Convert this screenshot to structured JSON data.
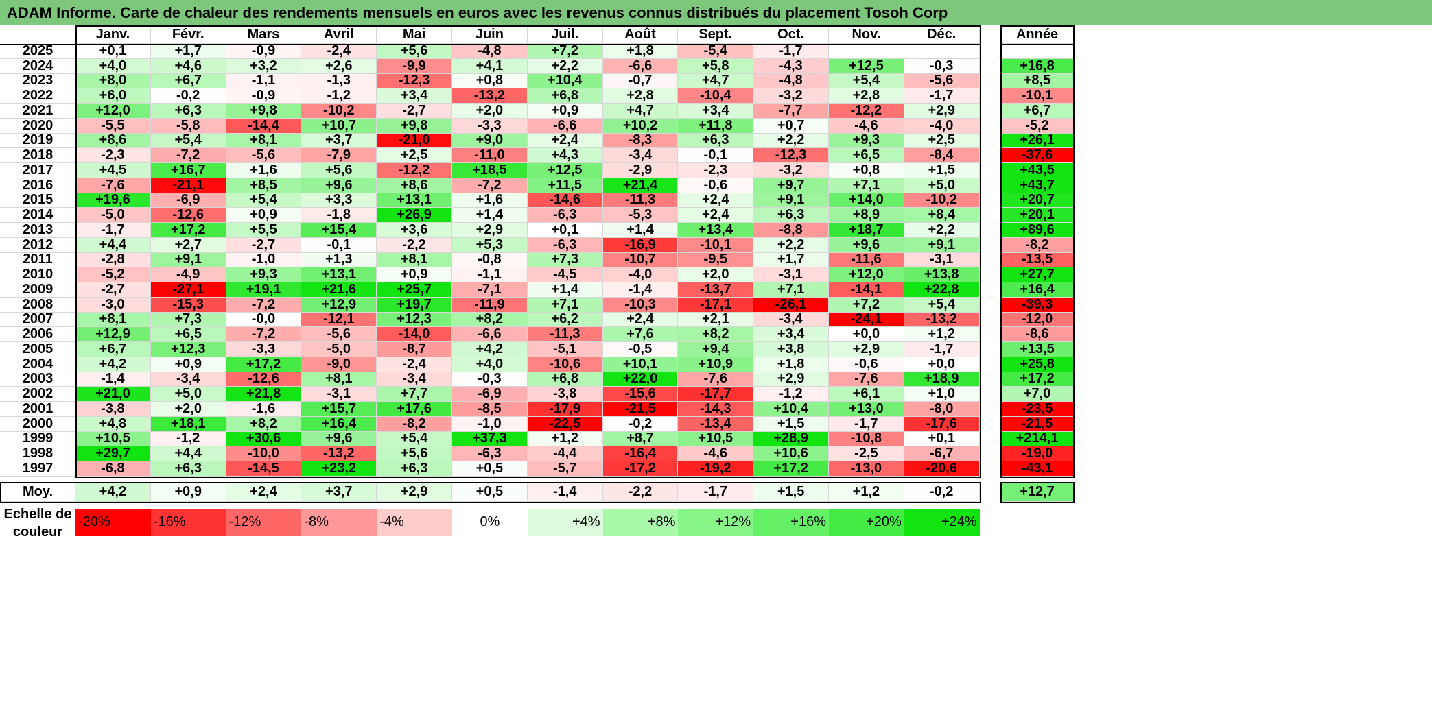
{
  "title": "ADAM Informe. Carte de chaleur des rendements mensuels en euros avec les revenus connus distribués du placement Tosoh Corp",
  "chart_data": {
    "type": "heatmap",
    "title": "ADAM Informe. Carte de chaleur des rendements mensuels en euros avec les revenus connus distribués du placement Tosoh Corp",
    "months": [
      "Janv.",
      "Févr.",
      "Mars",
      "Avril",
      "Mai",
      "Juin",
      "Juil.",
      "Août",
      "Sept.",
      "Oct.",
      "Nov.",
      "Déc."
    ],
    "year_header": "Année",
    "rows": [
      {
        "year": "2025",
        "values": [
          "+0,1",
          "+1,7",
          "-0,9",
          "-2,4",
          "+5,6",
          "-4,8",
          "+7,2",
          "+1,8",
          "-5,4",
          "-1,7",
          "",
          ""
        ],
        "annual": ""
      },
      {
        "year": "2024",
        "values": [
          "+4,0",
          "+4,6",
          "+3,2",
          "+2,6",
          "-9,9",
          "+4,1",
          "+2,2",
          "-6,6",
          "+5,8",
          "-4,3",
          "+12,5",
          "-0,3"
        ],
        "annual": "+16,8"
      },
      {
        "year": "2023",
        "values": [
          "+8,0",
          "+6,7",
          "-1,1",
          "-1,3",
          "-12,3",
          "+0,8",
          "+10,4",
          "-0,7",
          "+4,7",
          "-4,8",
          "+5,4",
          "-5,6"
        ],
        "annual": "+8,5"
      },
      {
        "year": "2022",
        "values": [
          "+6,0",
          "-0,2",
          "-0,9",
          "-1,2",
          "+3,4",
          "-13,2",
          "+6,8",
          "+2,8",
          "-10,4",
          "-3,2",
          "+2,8",
          "-1,7"
        ],
        "annual": "-10,1"
      },
      {
        "year": "2021",
        "values": [
          "+12,0",
          "+6,3",
          "+9,8",
          "-10,2",
          "-2,7",
          "+2,0",
          "+0,9",
          "+4,7",
          "+3,4",
          "-7,7",
          "-12,2",
          "+2,9"
        ],
        "annual": "+6,7"
      },
      {
        "year": "2020",
        "values": [
          "-5,5",
          "-5,8",
          "-14,4",
          "+10,7",
          "+9,8",
          "-3,3",
          "-6,6",
          "+10,2",
          "+11,8",
          "+0,7",
          "-4,6",
          "-4,0"
        ],
        "annual": "-5,2"
      },
      {
        "year": "2019",
        "values": [
          "+8,6",
          "+5,4",
          "+8,1",
          "+3,7",
          "-21,0",
          "+9,0",
          "+2,4",
          "-8,3",
          "+6,3",
          "+2,2",
          "+9,3",
          "+2,5"
        ],
        "annual": "+26,1"
      },
      {
        "year": "2018",
        "values": [
          "-2,3",
          "-7,2",
          "-5,6",
          "-7,9",
          "+2,5",
          "-11,0",
          "+4,3",
          "-3,4",
          "-0,1",
          "-12,3",
          "+6,5",
          "-8,4"
        ],
        "annual": "-37,6"
      },
      {
        "year": "2017",
        "values": [
          "+4,5",
          "+16,7",
          "+1,6",
          "+5,6",
          "-12,2",
          "+18,5",
          "+12,5",
          "-2,9",
          "-2,3",
          "-3,2",
          "+0,8",
          "+1,5"
        ],
        "annual": "+43,5"
      },
      {
        "year": "2016",
        "values": [
          "-7,6",
          "-21,1",
          "+8,5",
          "+9,6",
          "+8,6",
          "-7,2",
          "+11,5",
          "+21,4",
          "-0,6",
          "+9,7",
          "+7,1",
          "+5,0"
        ],
        "annual": "+43,7"
      },
      {
        "year": "2015",
        "values": [
          "+19,6",
          "-6,9",
          "+5,4",
          "+3,3",
          "+13,1",
          "+1,6",
          "-14,6",
          "-11,3",
          "+2,4",
          "+9,1",
          "+14,0",
          "-10,2"
        ],
        "annual": "+20,7"
      },
      {
        "year": "2014",
        "values": [
          "-5,0",
          "-12,6",
          "+0,9",
          "-1,8",
          "+26,9",
          "+1,4",
          "-6,3",
          "-5,3",
          "+2,4",
          "+6,3",
          "+8,9",
          "+8,4"
        ],
        "annual": "+20,1"
      },
      {
        "year": "2013",
        "values": [
          "-1,7",
          "+17,2",
          "+5,5",
          "+15,4",
          "+3,6",
          "+2,9",
          "+0,1",
          "+1,4",
          "+13,4",
          "-8,8",
          "+18,7",
          "+2,2"
        ],
        "annual": "+89,6"
      },
      {
        "year": "2012",
        "values": [
          "+4,4",
          "+2,7",
          "-2,7",
          "-0,1",
          "-2,2",
          "+5,3",
          "-6,3",
          "-16,9",
          "-10,1",
          "+2,2",
          "+9,6",
          "+9,1"
        ],
        "annual": "-8,2"
      },
      {
        "year": "2011",
        "values": [
          "-2,8",
          "+9,1",
          "-1,0",
          "+1,3",
          "+8,1",
          "-0,8",
          "+7,3",
          "-10,7",
          "-9,5",
          "+1,7",
          "-11,6",
          "-3,1"
        ],
        "annual": "-13,5"
      },
      {
        "year": "2010",
        "values": [
          "-5,2",
          "-4,9",
          "+9,3",
          "+13,1",
          "+0,9",
          "-1,1",
          "-4,5",
          "-4,0",
          "+2,0",
          "-3,1",
          "+12,0",
          "+13,8"
        ],
        "annual": "+27,7"
      },
      {
        "year": "2009",
        "values": [
          "-2,7",
          "-27,1",
          "+19,1",
          "+21,6",
          "+25,7",
          "-7,1",
          "+1,4",
          "-1,4",
          "-13,7",
          "+7,1",
          "-14,1",
          "+22,8"
        ],
        "annual": "+16,4"
      },
      {
        "year": "2008",
        "values": [
          "-3,0",
          "-15,3",
          "-7,2",
          "+12,9",
          "+19,7",
          "-11,9",
          "+7,1",
          "-10,3",
          "-17,1",
          "-26,1",
          "+7,2",
          "+5,4"
        ],
        "annual": "-39,3"
      },
      {
        "year": "2007",
        "values": [
          "+8,1",
          "+7,3",
          "-0,0",
          "-12,1",
          "+12,3",
          "+8,2",
          "+6,2",
          "+2,4",
          "+2,1",
          "-3,4",
          "-24,1",
          "-13,2"
        ],
        "annual": "-12,0"
      },
      {
        "year": "2006",
        "values": [
          "+12,9",
          "+6,5",
          "-7,2",
          "-5,6",
          "-14,0",
          "-6,6",
          "-11,3",
          "+7,6",
          "+8,2",
          "+3,4",
          "+0,0",
          "+1,2"
        ],
        "annual": "-8,6"
      },
      {
        "year": "2005",
        "values": [
          "+6,7",
          "+12,3",
          "-3,3",
          "-5,0",
          "-8,7",
          "+4,2",
          "-5,1",
          "-0,5",
          "+9,4",
          "+3,8",
          "+2,9",
          "-1,7"
        ],
        "annual": "+13,5"
      },
      {
        "year": "2004",
        "values": [
          "+4,2",
          "+0,9",
          "+17,2",
          "-9,0",
          "-2,4",
          "+4,0",
          "-10,6",
          "+10,1",
          "+10,9",
          "+1,8",
          "-0,6",
          "+0,0"
        ],
        "annual": "+25,8"
      },
      {
        "year": "2003",
        "values": [
          "-1,4",
          "-3,4",
          "-12,6",
          "+8,1",
          "-3,4",
          "-0,3",
          "+6,8",
          "+22,0",
          "-7,6",
          "+2,9",
          "-7,6",
          "+18,9"
        ],
        "annual": "+17,2"
      },
      {
        "year": "2002",
        "values": [
          "+21,0",
          "+5,0",
          "+21,8",
          "-3,1",
          "+7,7",
          "-6,9",
          "-3,8",
          "-15,6",
          "-17,7",
          "-1,2",
          "+6,1",
          "+1,0"
        ],
        "annual": "+7,0"
      },
      {
        "year": "2001",
        "values": [
          "-3,8",
          "+2,0",
          "-1,6",
          "+15,7",
          "+17,6",
          "-8,5",
          "-17,9",
          "-21,5",
          "-14,3",
          "+10,4",
          "+13,0",
          "-8,0"
        ],
        "annual": "-23,5"
      },
      {
        "year": "2000",
        "values": [
          "+4,8",
          "+18,1",
          "+8,2",
          "+16,4",
          "-8,2",
          "-1,0",
          "-22,5",
          "-0,2",
          "-13,4",
          "+1,5",
          "-1,7",
          "-17,6"
        ],
        "annual": "-21,5"
      },
      {
        "year": "1999",
        "values": [
          "+10,5",
          "-1,2",
          "+30,6",
          "+9,6",
          "+5,4",
          "+37,3",
          "+1,2",
          "+8,7",
          "+10,5",
          "+28,9",
          "-10,8",
          "+0,1"
        ],
        "annual": "+214,1"
      },
      {
        "year": "1998",
        "values": [
          "+29,7",
          "+4,4",
          "-10,0",
          "-13,2",
          "+5,6",
          "-6,3",
          "-4,4",
          "-16,4",
          "-4,6",
          "+10,6",
          "-2,5",
          "-6,7"
        ],
        "annual": "-19,0"
      },
      {
        "year": "1997",
        "values": [
          "-6,8",
          "+6,3",
          "-14,5",
          "+23,2",
          "+6,3",
          "+0,5",
          "-5,7",
          "-17,2",
          "-19,2",
          "+17,2",
          "-13,0",
          "-20,6"
        ],
        "annual": "-43,1"
      }
    ],
    "average": {
      "label": "Moy.",
      "values": [
        "+4,2",
        "+0,9",
        "+2,4",
        "+3,7",
        "+2,9",
        "+0,5",
        "-1,4",
        "-2,2",
        "-1,7",
        "+1,5",
        "+1,2",
        "-0,2"
      ],
      "annual": "+12,7"
    },
    "legend": {
      "label": "Echelle de couleur",
      "steps": [
        {
          "text": "-20%",
          "value": -20,
          "color": "#ff0000"
        },
        {
          "text": "-16%",
          "value": -16,
          "color": "#ff3333"
        },
        {
          "text": "-12%",
          "value": -12,
          "color": "#ff6666"
        },
        {
          "text": "-8%",
          "value": -8,
          "color": "#ff9999"
        },
        {
          "text": "-4%",
          "value": -4,
          "color": "#ffcccc"
        },
        {
          "text": "0%",
          "value": 0,
          "color": "#ffffff"
        },
        {
          "text": "+4%",
          "value": 4,
          "color": "#ddfcdd"
        },
        {
          "text": "+8%",
          "value": 8,
          "color": "#aaf8aa"
        },
        {
          "text": "+12%",
          "value": 12,
          "color": "#88f588"
        },
        {
          "text": "+16%",
          "value": 16,
          "color": "#66f066"
        },
        {
          "text": "+20%",
          "value": 20,
          "color": "#44eb44"
        },
        {
          "text": "+24%",
          "value": 24,
          "color": "#11e411"
        }
      ]
    }
  }
}
